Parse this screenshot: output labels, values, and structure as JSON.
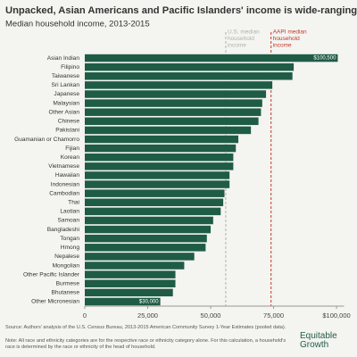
{
  "chart_data": {
    "type": "bar",
    "orientation": "horizontal",
    "title": "Unpacked, Asian Americans and Pacific Islanders' income is wide-ranging",
    "subtitle": "Median household income, 2013-2015",
    "categories": [
      "Asian Indian",
      "Filipino",
      "Taiwanese",
      "Sri Lankan",
      "Japanese",
      "Malaysian",
      "Other Asian",
      "Chinese",
      "Pakistani",
      "Guamanian or Chamorro",
      "Fijian",
      "Korean",
      "Vietnamese",
      "Hawaiian",
      "Indonesian",
      "Cambodian",
      "Thai",
      "Laotian",
      "Samoan",
      "Bangladeshi",
      "Tongan",
      "Hmong",
      "Nepalese",
      "Mongolian",
      "Other Pacific Islander",
      "Burmese",
      "Bhutanese",
      "Other Micronesian"
    ],
    "values": [
      100500,
      83000,
      82500,
      74500,
      72000,
      70500,
      70000,
      69000,
      66000,
      61000,
      60000,
      59000,
      59000,
      57500,
      57500,
      55500,
      55000,
      54000,
      51000,
      50000,
      48500,
      48000,
      43500,
      39500,
      36000,
      36000,
      35000,
      30000
    ],
    "value_labels": [
      "$100,500",
      null,
      null,
      null,
      null,
      null,
      null,
      null,
      null,
      null,
      null,
      null,
      null,
      null,
      null,
      null,
      null,
      null,
      null,
      null,
      null,
      null,
      null,
      null,
      null,
      null,
      null,
      "$30,000"
    ],
    "color": "#1f5c46",
    "xlim": [
      0,
      103000
    ],
    "xticks": [
      0,
      {
        "value": 25000,
        "label": "25,000"
      },
      {
        "value": 50000,
        "label": "50,000"
      },
      {
        "value": 75000,
        "label": "75,000"
      },
      {
        "value": 100000,
        "label": "$100,000"
      }
    ],
    "grid": false,
    "reference_lines": [
      {
        "value": 56000,
        "label": [
          "U.S. median",
          "household",
          "income"
        ],
        "color": "#b0b0b0"
      },
      {
        "value": 74000,
        "label": [
          "AAPI median",
          "household",
          "income"
        ],
        "color": "#c0392b"
      }
    ]
  },
  "source": "Source: Authors' analysis of the U.S. Census Bureau, 2013-2015 American Community Survey 1-Year Estimates (pooled data).",
  "note": "Note: All race and ethnicity categories are for the respective race or ethnicity category alone. For this calculation, a household's race is determined by the race or ethnicity of the head of household.",
  "logo": "Equitable Growth"
}
